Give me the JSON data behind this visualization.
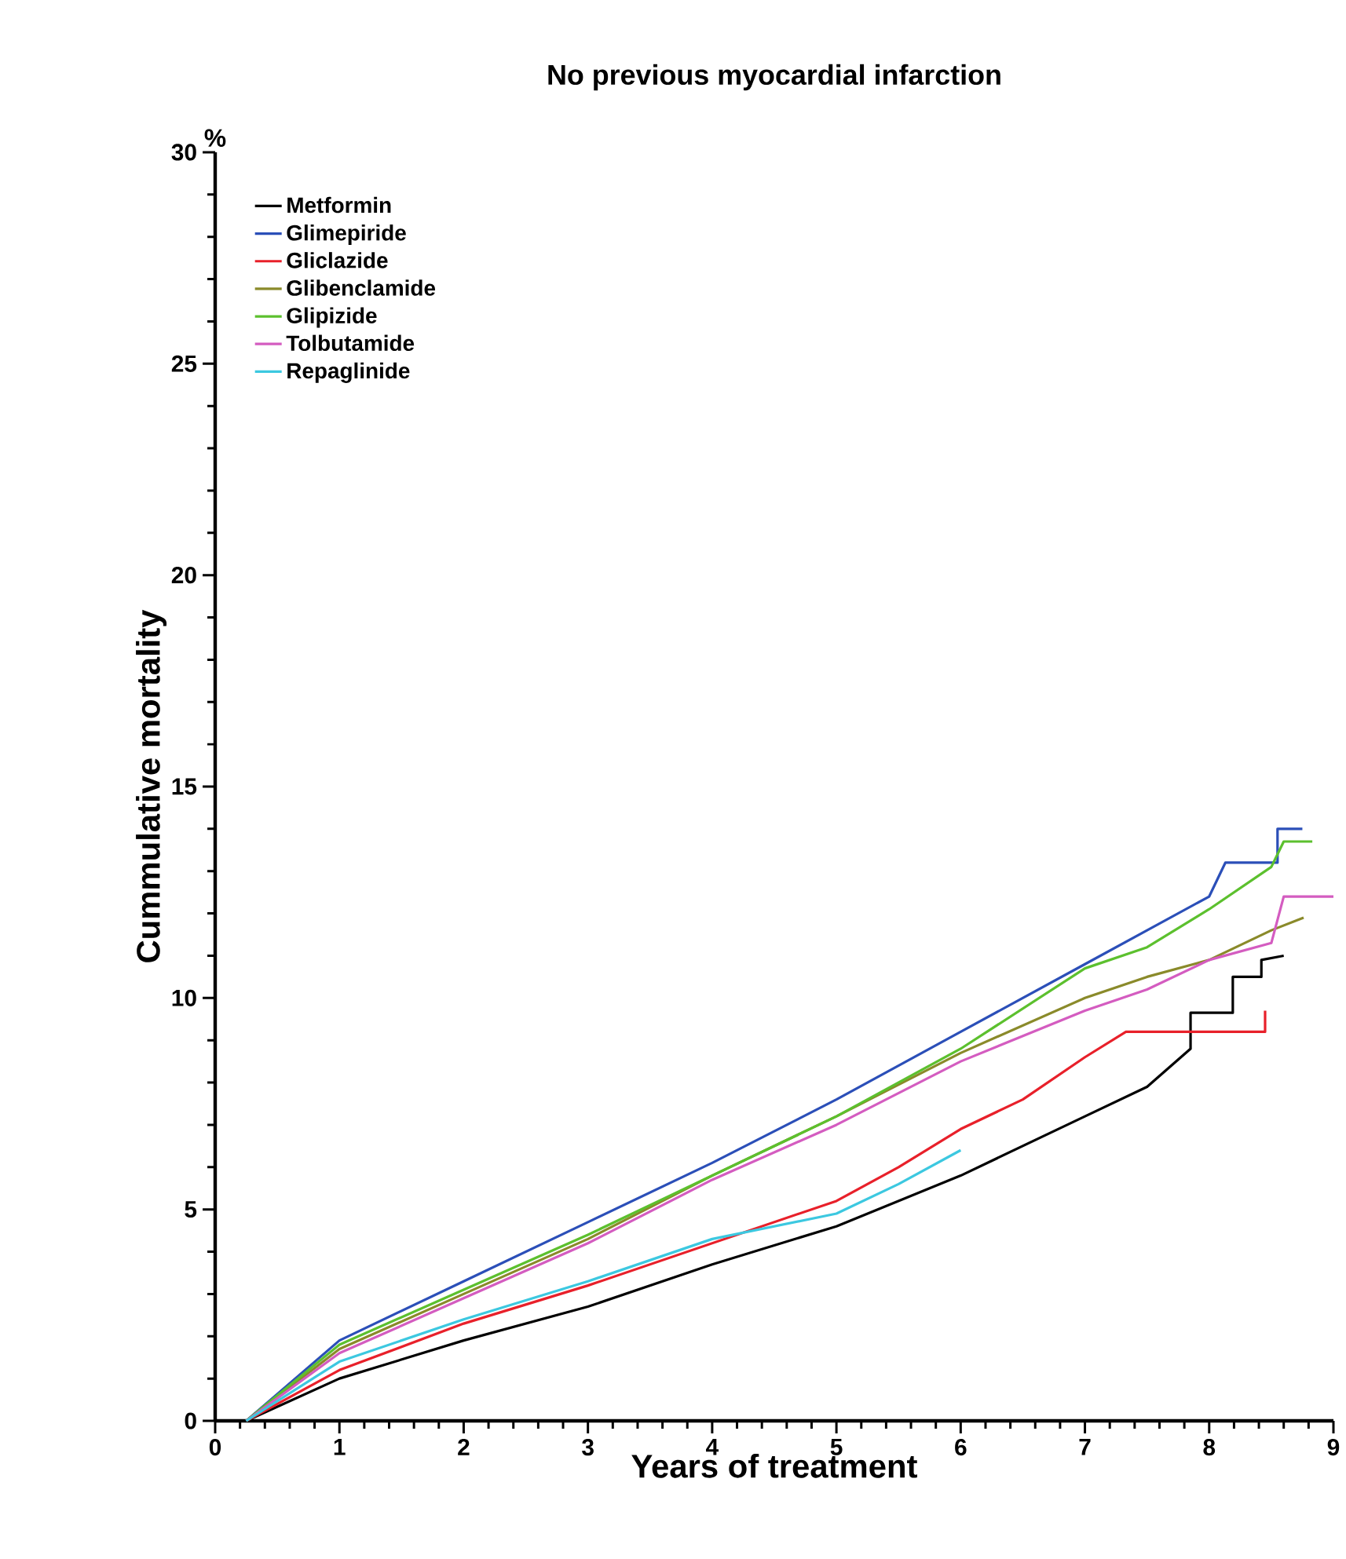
{
  "chart_data": {
    "type": "line",
    "title": "No previous myocardial infarction",
    "xlabel": "Years of treatment",
    "ylabel": "Cummulative mortality",
    "annotations": [
      "%"
    ],
    "xlim": [
      0,
      9
    ],
    "ylim": [
      0,
      30
    ],
    "xticks": [
      0,
      1,
      2,
      3,
      4,
      5,
      6,
      7,
      8,
      9
    ],
    "yticks": [
      0,
      5,
      10,
      15,
      20,
      25,
      30
    ],
    "legend": "top left",
    "line_style": "solid",
    "marker": "none",
    "series": [
      {
        "name": "Metformin",
        "color": "#000000",
        "x": [
          0.25,
          1,
          2,
          3,
          4,
          5,
          6,
          7,
          7.5,
          7.85,
          7.85,
          8.19,
          8.19,
          8.42,
          8.42,
          8.6
        ],
        "values": [
          0,
          1.0,
          1.9,
          2.7,
          3.7,
          4.6,
          5.8,
          7.2,
          7.9,
          8.8,
          9.65,
          9.65,
          10.5,
          10.5,
          10.9,
          11.0
        ]
      },
      {
        "name": "Glimepiride",
        "color": "#2b4fb8",
        "x": [
          0.25,
          1,
          2,
          3,
          4,
          5,
          6,
          7,
          7.5,
          8,
          8.13,
          8.55,
          8.55,
          8.75
        ],
        "values": [
          0,
          1.9,
          3.3,
          4.7,
          6.1,
          7.6,
          9.2,
          10.8,
          11.6,
          12.4,
          13.2,
          13.2,
          14.0,
          14.0
        ]
      },
      {
        "name": "Gliclazide",
        "color": "#e8202a",
        "x": [
          0.25,
          1,
          2,
          3,
          4,
          5,
          5.5,
          6,
          6.5,
          7,
          7.33,
          8.45,
          8.45
        ],
        "values": [
          0,
          1.2,
          2.3,
          3.2,
          4.2,
          5.2,
          6.0,
          6.9,
          7.6,
          8.6,
          9.2,
          9.2,
          9.7
        ]
      },
      {
        "name": "Glibenclamide",
        "color": "#8a8a2a",
        "x": [
          0.25,
          1,
          2,
          3,
          4,
          5,
          6,
          7,
          7.5,
          8,
          8.5,
          8.76
        ],
        "values": [
          0,
          1.7,
          3.0,
          4.3,
          5.8,
          7.2,
          8.7,
          10.0,
          10.5,
          10.9,
          11.6,
          11.9
        ]
      },
      {
        "name": "Glipizide",
        "color": "#5cc02e",
        "x": [
          0.25,
          1,
          2,
          3,
          4,
          5,
          6,
          7,
          7.5,
          8,
          8.5,
          8.6,
          8.83
        ],
        "values": [
          0,
          1.8,
          3.1,
          4.4,
          5.8,
          7.2,
          8.8,
          10.7,
          11.2,
          12.1,
          13.1,
          13.7,
          13.7
        ]
      },
      {
        "name": "Tolbutamide",
        "color": "#d45cc0",
        "x": [
          0.25,
          1,
          2,
          3,
          4,
          5,
          6,
          7,
          7.5,
          8,
          8.5,
          8.6,
          9.0
        ],
        "values": [
          0,
          1.6,
          2.9,
          4.2,
          5.7,
          7.0,
          8.5,
          9.7,
          10.2,
          10.9,
          11.3,
          12.4,
          12.4
        ]
      },
      {
        "name": "Repaglinide",
        "color": "#3cc8e0",
        "x": [
          0.25,
          1,
          2,
          3,
          4,
          5,
          5.5,
          6
        ],
        "values": [
          0,
          1.4,
          2.4,
          3.3,
          4.3,
          4.9,
          5.6,
          6.4
        ]
      }
    ]
  }
}
